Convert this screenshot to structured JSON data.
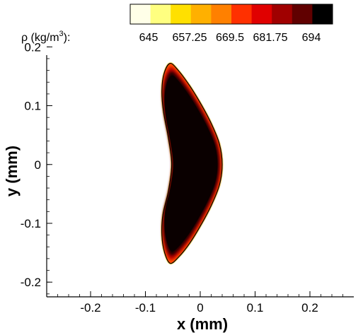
{
  "chart_data": {
    "type": "heatmap",
    "title": "",
    "xlabel": "x (mm)",
    "ylabel": "y (mm)",
    "xlim": [
      -0.28,
      0.28
    ],
    "ylim": [
      -0.225,
      0.21
    ],
    "xticks": [
      -0.2,
      -0.1,
      0,
      0.1,
      0.2
    ],
    "xtick_labels": [
      "-0.2",
      "-0.1",
      "0",
      "0.1",
      "0.2"
    ],
    "yticks": [
      -0.2,
      -0.1,
      0,
      0.1,
      0.2
    ],
    "ytick_labels": [
      "-0.2",
      "-0.1",
      "0",
      "0.1",
      "0.2"
    ],
    "colorbar": {
      "label_prefix": "ρ (kg/m",
      "label_exponent": "3",
      "label_suffix": "):",
      "min": 645,
      "max": 694,
      "ticks": [
        "645",
        "657.25",
        "669.5",
        "681.75",
        "694"
      ],
      "placement": "top",
      "colors": [
        "#ffffe8",
        "#ffff80",
        "#ffe000",
        "#ffb000",
        "#ff8000",
        "#ff3000",
        "#e00000",
        "#a00000",
        "#600000",
        "#000000"
      ]
    },
    "droplet": {
      "outline": [
        [
          -0.055,
          0.172
        ],
        [
          -0.04,
          0.16
        ],
        [
          -0.02,
          0.135
        ],
        [
          0.0,
          0.105
        ],
        [
          0.02,
          0.07
        ],
        [
          0.035,
          0.035
        ],
        [
          0.04,
          0.0
        ],
        [
          0.035,
          -0.035
        ],
        [
          0.02,
          -0.07
        ],
        [
          0.0,
          -0.105
        ],
        [
          -0.02,
          -0.135
        ],
        [
          -0.04,
          -0.158
        ],
        [
          -0.055,
          -0.168
        ],
        [
          -0.065,
          -0.15
        ],
        [
          -0.07,
          -0.12
        ],
        [
          -0.068,
          -0.085
        ],
        [
          -0.058,
          -0.045
        ],
        [
          -0.052,
          0.0
        ],
        [
          -0.058,
          0.045
        ],
        [
          -0.067,
          0.09
        ],
        [
          -0.07,
          0.125
        ],
        [
          -0.066,
          0.155
        ]
      ],
      "interior_density": 694,
      "edge_density": 645
    },
    "grid": false
  }
}
